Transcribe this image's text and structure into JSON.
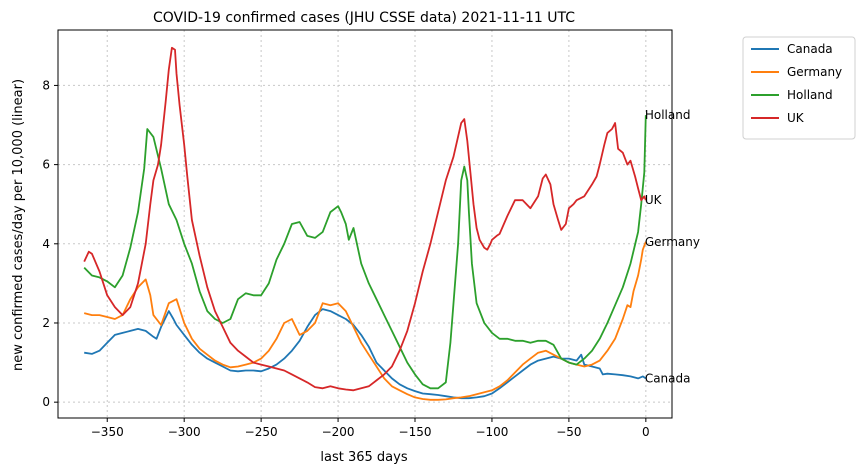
{
  "chart_data": {
    "type": "line",
    "title": "COVID-19 confirmed cases (JHU CSSE data) 2021-11-11 UTC",
    "xlabel": "last 365 days",
    "ylabel": "new confirmed cases/day per 10,000 (linear)",
    "xlim": [
      -382,
      17
    ],
    "ylim": [
      -0.4,
      9.4
    ],
    "xticks": [
      -350,
      -300,
      -250,
      -200,
      -150,
      -100,
      -50,
      0
    ],
    "xtick_labels": [
      "−350",
      "−300",
      "−250",
      "−200",
      "−150",
      "−100",
      "−50",
      "0"
    ],
    "yticks": [
      0,
      2,
      4,
      6,
      8
    ],
    "ytick_labels": [
      "0",
      "2",
      "4",
      "6",
      "8"
    ],
    "grid": true,
    "legend": "outside-top-right",
    "series": [
      {
        "name": "Canada",
        "color": "#1f77b4",
        "end_label": "Canada",
        "x": [
          -365,
          -360,
          -355,
          -350,
          -345,
          -340,
          -335,
          -330,
          -325,
          -320,
          -318,
          -315,
          -310,
          -307,
          -305,
          -300,
          -295,
          -290,
          -285,
          -280,
          -275,
          -270,
          -265,
          -260,
          -255,
          -250,
          -245,
          -240,
          -235,
          -230,
          -225,
          -220,
          -215,
          -210,
          -205,
          -200,
          -195,
          -190,
          -185,
          -180,
          -175,
          -170,
          -165,
          -160,
          -155,
          -150,
          -145,
          -140,
          -135,
          -130,
          -125,
          -120,
          -115,
          -110,
          -105,
          -100,
          -95,
          -90,
          -85,
          -80,
          -75,
          -70,
          -65,
          -60,
          -55,
          -50,
          -45,
          -42,
          -40,
          -35,
          -30,
          -28,
          -25,
          -20,
          -15,
          -10,
          -5,
          -2,
          0
        ],
        "y": [
          1.25,
          1.22,
          1.3,
          1.5,
          1.7,
          1.75,
          1.8,
          1.85,
          1.8,
          1.65,
          1.6,
          1.9,
          2.3,
          2.1,
          1.95,
          1.7,
          1.45,
          1.25,
          1.1,
          1.0,
          0.9,
          0.8,
          0.78,
          0.8,
          0.8,
          0.78,
          0.85,
          0.95,
          1.1,
          1.3,
          1.55,
          1.9,
          2.2,
          2.35,
          2.3,
          2.2,
          2.1,
          1.95,
          1.7,
          1.4,
          1.0,
          0.8,
          0.6,
          0.45,
          0.35,
          0.28,
          0.22,
          0.2,
          0.18,
          0.15,
          0.12,
          0.1,
          0.1,
          0.12,
          0.15,
          0.22,
          0.35,
          0.5,
          0.65,
          0.8,
          0.95,
          1.05,
          1.1,
          1.15,
          1.1,
          1.1,
          1.05,
          1.2,
          0.95,
          0.9,
          0.85,
          0.7,
          0.72,
          0.7,
          0.68,
          0.65,
          0.6,
          0.65,
          0.6
        ]
      },
      {
        "name": "Germany",
        "color": "#ff7f0e",
        "end_label": "Germany",
        "x": [
          -365,
          -360,
          -355,
          -350,
          -345,
          -340,
          -335,
          -330,
          -325,
          -322,
          -320,
          -315,
          -310,
          -305,
          -300,
          -295,
          -290,
          -285,
          -280,
          -275,
          -270,
          -265,
          -260,
          -255,
          -250,
          -245,
          -240,
          -235,
          -230,
          -225,
          -220,
          -215,
          -210,
          -205,
          -200,
          -195,
          -190,
          -185,
          -180,
          -175,
          -170,
          -165,
          -160,
          -155,
          -150,
          -145,
          -140,
          -135,
          -130,
          -125,
          -120,
          -115,
          -110,
          -105,
          -100,
          -95,
          -90,
          -85,
          -80,
          -75,
          -70,
          -65,
          -60,
          -55,
          -50,
          -45,
          -40,
          -35,
          -30,
          -25,
          -20,
          -15,
          -12,
          -10,
          -8,
          -5,
          -3,
          -2,
          0
        ],
        "y": [
          2.25,
          2.2,
          2.2,
          2.15,
          2.1,
          2.2,
          2.6,
          2.9,
          3.1,
          2.7,
          2.2,
          1.95,
          2.5,
          2.6,
          2.0,
          1.6,
          1.35,
          1.2,
          1.05,
          0.95,
          0.88,
          0.9,
          0.95,
          1.0,
          1.1,
          1.3,
          1.6,
          2.0,
          2.1,
          1.7,
          1.8,
          2.0,
          2.5,
          2.45,
          2.5,
          2.3,
          1.9,
          1.5,
          1.2,
          0.9,
          0.6,
          0.4,
          0.3,
          0.2,
          0.12,
          0.08,
          0.06,
          0.06,
          0.07,
          0.1,
          0.12,
          0.15,
          0.2,
          0.25,
          0.3,
          0.4,
          0.55,
          0.75,
          0.95,
          1.1,
          1.25,
          1.3,
          1.2,
          1.1,
          1.0,
          0.95,
          0.9,
          0.95,
          1.05,
          1.3,
          1.6,
          2.1,
          2.45,
          2.4,
          2.8,
          3.2,
          3.6,
          3.85,
          4.05
        ]
      },
      {
        "name": "Holland",
        "color": "#2ca02c",
        "end_label": "Holland",
        "x": [
          -365,
          -360,
          -355,
          -350,
          -345,
          -340,
          -335,
          -330,
          -326,
          -324,
          -320,
          -315,
          -310,
          -305,
          -300,
          -295,
          -290,
          -285,
          -280,
          -275,
          -270,
          -265,
          -260,
          -255,
          -250,
          -245,
          -240,
          -235,
          -230,
          -225,
          -220,
          -215,
          -210,
          -205,
          -200,
          -198,
          -195,
          -193,
          -190,
          -185,
          -180,
          -175,
          -170,
          -165,
          -160,
          -155,
          -150,
          -145,
          -140,
          -135,
          -130,
          -127,
          -125,
          -122,
          -120,
          -118,
          -116,
          -115,
          -113,
          -110,
          -105,
          -100,
          -95,
          -90,
          -85,
          -80,
          -75,
          -70,
          -65,
          -60,
          -55,
          -50,
          -45,
          -40,
          -35,
          -30,
          -25,
          -20,
          -15,
          -10,
          -5,
          -3,
          -1,
          0
        ],
        "y": [
          3.4,
          3.2,
          3.15,
          3.05,
          2.9,
          3.2,
          3.9,
          4.8,
          5.9,
          6.9,
          6.7,
          5.9,
          5.0,
          4.6,
          4.0,
          3.5,
          2.8,
          2.3,
          2.1,
          2.0,
          2.1,
          2.6,
          2.75,
          2.7,
          2.7,
          3.0,
          3.6,
          4.0,
          4.5,
          4.55,
          4.2,
          4.15,
          4.3,
          4.8,
          4.95,
          4.8,
          4.5,
          4.1,
          4.4,
          3.5,
          3.0,
          2.6,
          2.2,
          1.8,
          1.4,
          1.0,
          0.7,
          0.45,
          0.35,
          0.35,
          0.5,
          1.5,
          2.5,
          4.0,
          5.6,
          5.95,
          5.6,
          4.8,
          3.5,
          2.5,
          2.0,
          1.75,
          1.6,
          1.6,
          1.55,
          1.55,
          1.5,
          1.55,
          1.55,
          1.45,
          1.1,
          1.0,
          0.95,
          1.1,
          1.3,
          1.6,
          2.0,
          2.45,
          2.9,
          3.5,
          4.3,
          5.0,
          5.8,
          7.25
        ]
      },
      {
        "name": "UK",
        "color": "#d62728",
        "end_label": "UK",
        "x": [
          -365,
          -362,
          -360,
          -355,
          -350,
          -345,
          -340,
          -335,
          -330,
          -325,
          -322,
          -320,
          -317,
          -315,
          -312,
          -310,
          -308,
          -306,
          -305,
          -303,
          -300,
          -298,
          -295,
          -290,
          -285,
          -280,
          -275,
          -270,
          -265,
          -260,
          -255,
          -250,
          -245,
          -240,
          -235,
          -230,
          -225,
          -220,
          -215,
          -210,
          -205,
          -200,
          -195,
          -190,
          -185,
          -180,
          -175,
          -170,
          -165,
          -160,
          -155,
          -150,
          -145,
          -140,
          -135,
          -130,
          -125,
          -120,
          -118,
          -116,
          -114,
          -112,
          -110,
          -108,
          -105,
          -103,
          -101,
          -100,
          -97,
          -95,
          -90,
          -85,
          -80,
          -75,
          -70,
          -67,
          -65,
          -62,
          -60,
          -57,
          -55,
          -52,
          -50,
          -47,
          -45,
          -40,
          -35,
          -32,
          -30,
          -27,
          -25,
          -22,
          -20,
          -18,
          -15,
          -12,
          -10,
          -7,
          -5,
          -3,
          -1,
          0
        ],
        "y": [
          3.55,
          3.8,
          3.75,
          3.3,
          2.7,
          2.4,
          2.2,
          2.4,
          3.0,
          4.0,
          5.0,
          5.6,
          6.0,
          6.5,
          7.6,
          8.4,
          8.95,
          8.9,
          8.3,
          7.5,
          6.5,
          5.7,
          4.6,
          3.7,
          2.9,
          2.3,
          1.9,
          1.5,
          1.3,
          1.15,
          1.0,
          0.95,
          0.9,
          0.85,
          0.8,
          0.7,
          0.6,
          0.5,
          0.38,
          0.35,
          0.4,
          0.35,
          0.32,
          0.3,
          0.35,
          0.4,
          0.55,
          0.7,
          0.9,
          1.3,
          1.8,
          2.5,
          3.3,
          4.0,
          4.8,
          5.6,
          6.2,
          7.05,
          7.15,
          6.6,
          5.8,
          5.0,
          4.4,
          4.1,
          3.9,
          3.85,
          4.0,
          4.1,
          4.2,
          4.25,
          4.7,
          5.1,
          5.1,
          4.9,
          5.2,
          5.65,
          5.75,
          5.5,
          5.0,
          4.6,
          4.35,
          4.5,
          4.9,
          5.0,
          5.1,
          5.2,
          5.5,
          5.7,
          6.0,
          6.5,
          6.8,
          6.9,
          7.05,
          6.4,
          6.3,
          6.0,
          6.1,
          5.7,
          5.4,
          5.1,
          5.2,
          5.1
        ]
      }
    ]
  }
}
